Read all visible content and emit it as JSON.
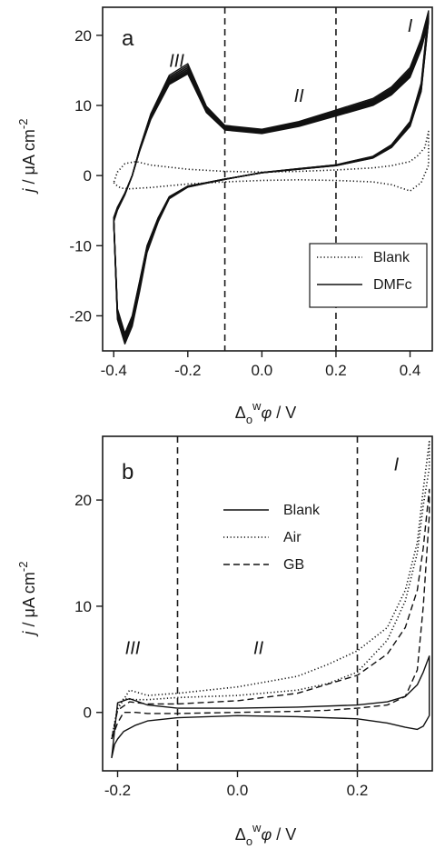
{
  "chart_data": [
    {
      "panel": "a",
      "type": "line",
      "xlabel_parts": {
        "delta": "Δ",
        "sub": "o",
        "sup": "w",
        "phi": "φ",
        "unit": " / V"
      },
      "ylabel_parts": {
        "j": "j",
        "unit": " / μA cm",
        "sup": "-2"
      },
      "xlim": [
        -0.43,
        0.46
      ],
      "ylim": [
        -25,
        24
      ],
      "xticks": [
        -0.4,
        -0.2,
        0.0,
        0.2,
        0.4
      ],
      "xtick_labels": [
        "-0.4",
        "-0.2",
        "0.0",
        "0.2",
        "0.4"
      ],
      "yticks": [
        -20,
        -10,
        0,
        10,
        20
      ],
      "ytick_labels": [
        "-20",
        "-10",
        "0",
        "10",
        "20"
      ],
      "vlines": [
        -0.1,
        0.2
      ],
      "regions": [
        {
          "label": "III",
          "x": -0.23,
          "y": 15.5
        },
        {
          "label": "II",
          "x": 0.1,
          "y": 10.5
        },
        {
          "label": "I",
          "x": 0.4,
          "y": 20.5
        }
      ],
      "legend": {
        "position": "bottom-right",
        "entries": [
          {
            "name": "Blank",
            "style": "dotted"
          },
          {
            "name": "DMFc",
            "style": "solid"
          }
        ]
      },
      "series": [
        {
          "name": "Blank",
          "style": "dotted",
          "x": [
            -0.4,
            -0.39,
            -0.38,
            -0.36,
            -0.33,
            -0.3,
            -0.2,
            -0.1,
            0.0,
            0.1,
            0.2,
            0.3,
            0.35,
            0.4,
            0.43,
            0.45,
            0.45,
            0.44,
            0.42,
            0.4,
            0.35,
            0.3,
            0.2,
            0.1,
            0.0,
            -0.1,
            -0.2,
            -0.3,
            -0.34,
            -0.37,
            -0.39,
            -0.4
          ],
          "y": [
            -1,
            -1.5,
            -1.8,
            -1.9,
            -1.8,
            -1.7,
            -1.2,
            -0.9,
            -0.7,
            -0.6,
            -0.7,
            -0.9,
            -1.3,
            -2.2,
            -1.0,
            1.5,
            6.3,
            4.0,
            2.8,
            2.0,
            1.4,
            1.1,
            0.8,
            0.6,
            0.5,
            0.6,
            0.9,
            1.5,
            2.0,
            1.7,
            0.5,
            -1
          ]
        },
        {
          "name": "DMFc",
          "style": "solid",
          "cycle_offsets": [
            0,
            0.5,
            1.0,
            1.5,
            2.0,
            2.5,
            3.0,
            3.5,
            4.0,
            4.5,
            5.0
          ],
          "x": [
            -0.4,
            -0.39,
            -0.37,
            -0.35,
            -0.33,
            -0.31,
            -0.28,
            -0.25,
            -0.2,
            -0.15,
            -0.1,
            0.0,
            0.1,
            0.2,
            0.3,
            0.35,
            0.4,
            0.43,
            0.45,
            0.45,
            0.43,
            0.4,
            0.35,
            0.3,
            0.2,
            0.1,
            0.0,
            -0.1,
            -0.15,
            -0.2,
            -0.25,
            -0.3,
            -0.33,
            -0.35,
            -0.37,
            -0.39,
            -0.4
          ],
          "y": [
            -6,
            -19,
            -22.5,
            -20,
            -15,
            -10,
            -6,
            -3,
            -1.5,
            -1,
            -0.5,
            0.4,
            0.9,
            1.4,
            2.5,
            4.0,
            7.0,
            12.0,
            22.0,
            22.0,
            18.0,
            14.0,
            11.5,
            10.0,
            8.5,
            7.0,
            6.0,
            6.5,
            9.0,
            14.5,
            13.0,
            8.0,
            3.5,
            0.0,
            -2.5,
            -4.5,
            -6
          ]
        }
      ]
    },
    {
      "panel": "b",
      "type": "line",
      "xlabel_parts": {
        "delta": "Δ",
        "sub": "o",
        "sup": "w",
        "phi": "φ",
        "unit": " / V"
      },
      "ylabel_parts": {
        "j": "j",
        "unit": " / μA cm",
        "sup": "-2"
      },
      "xlim": [
        -0.225,
        0.325
      ],
      "ylim": [
        -5.5,
        26
      ],
      "xticks": [
        -0.2,
        0.0,
        0.2
      ],
      "xtick_labels": [
        "-0.2",
        "0.0",
        "0.2"
      ],
      "yticks": [
        0,
        10,
        20
      ],
      "ytick_labels": [
        "0",
        "10",
        "20"
      ],
      "vlines": [
        -0.1,
        0.2
      ],
      "regions": [
        {
          "label": "III",
          "x": -0.175,
          "y": 5.5
        },
        {
          "label": "II",
          "x": 0.035,
          "y": 5.5
        },
        {
          "label": "I",
          "x": 0.265,
          "y": 22.8
        }
      ],
      "legend": {
        "position": "top-center",
        "entries": [
          {
            "name": "Blank",
            "style": "solid"
          },
          {
            "name": "Air",
            "style": "dotted"
          },
          {
            "name": "GB",
            "style": "dashed"
          }
        ]
      },
      "series": [
        {
          "name": "Blank",
          "style": "solid",
          "x": [
            -0.21,
            -0.205,
            -0.2,
            -0.19,
            -0.17,
            -0.15,
            -0.1,
            0.0,
            0.1,
            0.2,
            0.25,
            0.28,
            0.3,
            0.31,
            0.32,
            0.32,
            0.31,
            0.3,
            0.28,
            0.25,
            0.2,
            0.1,
            0.0,
            -0.1,
            -0.15,
            -0.18,
            -0.2,
            -0.21
          ],
          "y": [
            -4.3,
            -3.0,
            -2.5,
            -1.8,
            -1.2,
            -0.8,
            -0.5,
            -0.3,
            -0.4,
            -0.6,
            -1.0,
            -1.4,
            -1.6,
            -1.3,
            -0.3,
            5.3,
            3.8,
            2.6,
            1.5,
            1.0,
            0.7,
            0.5,
            0.4,
            0.4,
            0.7,
            1.3,
            0.9,
            -4.3
          ]
        },
        {
          "name": "Air",
          "style": "dotted",
          "x": [
            -0.21,
            -0.2,
            -0.19,
            -0.17,
            -0.15,
            -0.1,
            0.0,
            0.1,
            0.15,
            0.2,
            0.25,
            0.28,
            0.3,
            0.31,
            0.32,
            0.32,
            0.31,
            0.3,
            0.28,
            0.25,
            0.2,
            0.15,
            0.1,
            0.0,
            -0.1,
            -0.15,
            -0.18,
            -0.2,
            -0.21
          ],
          "y": [
            -2.5,
            0.5,
            1.3,
            1.2,
            1.2,
            1.4,
            1.6,
            2.1,
            2.7,
            3.8,
            6.8,
            10.5,
            15.0,
            19.5,
            23.0,
            25.5,
            21.0,
            16.0,
            11.5,
            8.0,
            5.8,
            4.5,
            3.4,
            2.4,
            1.8,
            1.6,
            2.1,
            0.3,
            -2.5
          ]
        },
        {
          "name": "GB",
          "style": "dashed",
          "x": [
            -0.21,
            -0.2,
            -0.19,
            -0.17,
            -0.15,
            -0.1,
            0.0,
            0.1,
            0.15,
            0.2,
            0.25,
            0.28,
            0.3,
            0.31,
            0.32,
            0.32,
            0.31,
            0.3,
            0.28,
            0.25,
            0.2,
            0.1,
            0.0,
            -0.1,
            -0.15,
            -0.18,
            -0.2,
            -0.21
          ],
          "y": [
            -2.5,
            -1.0,
            0.0,
            0.0,
            -0.1,
            -0.1,
            0.0,
            0.1,
            0.2,
            0.4,
            0.7,
            1.5,
            4.0,
            10.0,
            18.5,
            21.0,
            15.5,
            11.5,
            8.0,
            5.5,
            3.5,
            1.8,
            1.1,
            0.8,
            0.8,
            1.0,
            0.2,
            -2.5
          ]
        }
      ]
    }
  ]
}
